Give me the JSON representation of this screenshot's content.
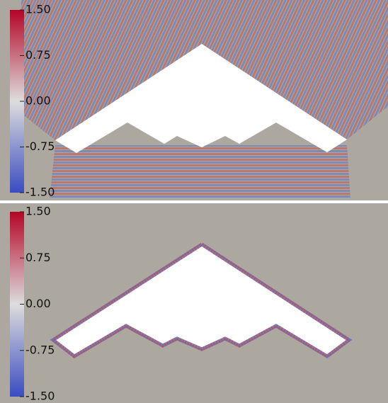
{
  "chart_data": [
    {
      "type": "heatmap",
      "colors": [
        "#3b4cc0",
        "#dddddd",
        "#b40426"
      ],
      "clim": [
        -1.5,
        1.5
      ],
      "cticks": [
        {
          "value": 1.5,
          "label": "1.50"
        },
        {
          "value": 0.75,
          "label": "0.75"
        },
        {
          "value": 0,
          "label": "0.00"
        },
        {
          "value": -0.75,
          "label": "-0.75"
        },
        {
          "value": -1.5,
          "label": "-1.50"
        }
      ]
    },
    {
      "type": "heatmap",
      "colors": [
        "#3b4cc0",
        "#dddddd",
        "#b40426"
      ],
      "clim": [
        -1.5,
        1.5
      ],
      "cticks": [
        {
          "value": 1.5,
          "label": "1.50"
        },
        {
          "value": 0.75,
          "label": "0.75"
        },
        {
          "value": 0,
          "label": "0.00"
        },
        {
          "value": -0.75,
          "label": "-0.75"
        },
        {
          "value": -1.5,
          "label": "-1.50"
        }
      ]
    }
  ]
}
